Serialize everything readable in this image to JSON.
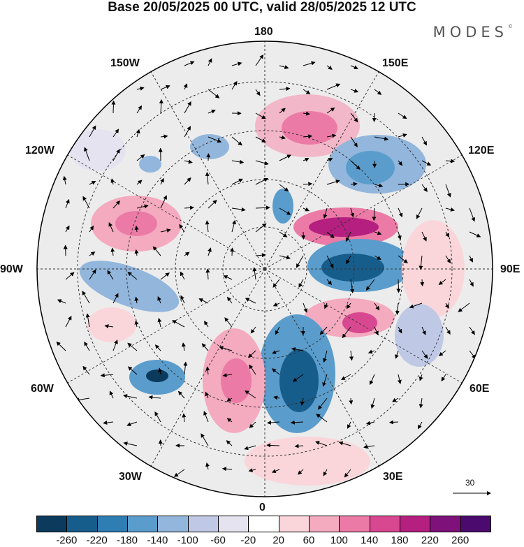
{
  "title": "Base 20/05/2025 00 UTC, valid 28/05/2025 12 UTC",
  "brand": {
    "text": "MODES",
    "mark": "©"
  },
  "map": {
    "projection": "north-polar-stereographic",
    "longitude_labels": {
      "top": "180",
      "bottom": "0",
      "left": "90W",
      "right": "90E",
      "upper_left": "150W",
      "upper_right": "150E",
      "left_upper": "120W",
      "right_upper": "120E",
      "left_lower": "60W",
      "right_lower": "60E",
      "lower_left": "30W",
      "lower_right": "30E"
    },
    "reference_vector_label": "30",
    "field": "anomaly shading with wind vectors",
    "background_color": "#ececec"
  },
  "colorbar": {
    "ticks": [
      "-260",
      "-220",
      "-180",
      "-140",
      "-100",
      "-60",
      "-20",
      "20",
      "60",
      "100",
      "140",
      "180",
      "220",
      "260"
    ],
    "colors": [
      "#0b3a5c",
      "#175d8c",
      "#2e7db3",
      "#5a9dcc",
      "#92b6dc",
      "#bfc9e5",
      "#e5e3f0",
      "#ffffff",
      "#fad6da",
      "#f4aabf",
      "#ec7aa6",
      "#d84890",
      "#b51f80",
      "#7e117a",
      "#4b0a6e"
    ]
  }
}
